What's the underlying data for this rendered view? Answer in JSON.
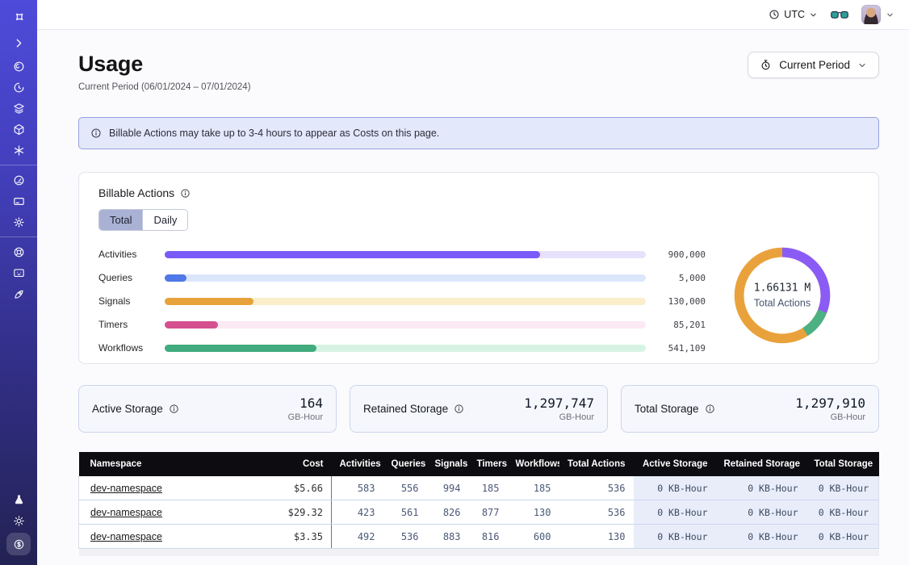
{
  "topbar": {
    "timezone": "UTC"
  },
  "sidebar": {
    "icons": [
      "pinwheel-logo",
      "chevron-right",
      "spiral",
      "history-clock",
      "layers",
      "cube",
      "asterisk",
      "gauge",
      "card",
      "gear",
      "lifebuoy",
      "monitor",
      "rocket",
      "flask",
      "sun",
      "dollar-coin"
    ]
  },
  "header": {
    "title": "Usage",
    "subtitle": "Current Period (06/01/2024 – 07/01/2024)",
    "period_button_label": "Current Period"
  },
  "banner": {
    "text": "Billable Actions may take up to 3-4 hours to appear as Costs on this page."
  },
  "billable_actions": {
    "title": "Billable Actions",
    "tabs": [
      "Total",
      "Daily"
    ],
    "active_tab": "Total"
  },
  "chart_data": [
    {
      "type": "bar",
      "orientation": "horizontal",
      "title": "Billable Actions — Total",
      "categories": [
        "Activities",
        "Queries",
        "Signals",
        "Timers",
        "Workflows"
      ],
      "values": [
        900000,
        5000,
        130000,
        85201,
        541109
      ],
      "value_labels": [
        "900,000",
        "5,000",
        "130,000",
        "85,201",
        "541,109"
      ],
      "bar_colors": [
        "#7a5af8",
        "#4f78e8",
        "#e8a23c",
        "#d4508f",
        "#42ab7e"
      ],
      "track_colors": [
        "#e7e1fc",
        "#dce6fb",
        "#faeecb",
        "#fbe9f4",
        "#d7f3e4"
      ],
      "bar_fractions": [
        0.78,
        0.045,
        0.185,
        0.11,
        0.315
      ],
      "grid": false,
      "legend": false
    },
    {
      "type": "donut",
      "title": "Total Actions",
      "center_value": "1.66131 M",
      "center_label": "Total Actions",
      "segments": [
        {
          "name": "purple",
          "color": "#8a5cf5",
          "pct": 31
        },
        {
          "name": "green",
          "color": "#4cb083",
          "pct": 10
        },
        {
          "name": "orange",
          "color": "#e9a23b",
          "pct": 59
        }
      ]
    }
  ],
  "storage_cards": [
    {
      "label": "Active Storage",
      "value": "164",
      "unit": "GB-Hour"
    },
    {
      "label": "Retained Storage",
      "value": "1,297,747",
      "unit": "GB-Hour"
    },
    {
      "label": "Total Storage",
      "value": "1,297,910",
      "unit": "GB-Hour"
    }
  ],
  "table": {
    "columns": [
      "Namespace",
      "Cost",
      "Activities",
      "Queries",
      "Signals",
      "Timers",
      "Workflows",
      "Total Actions",
      "Active Storage",
      "Retained Storage",
      "Total Storage"
    ],
    "rows": [
      {
        "namespace": "dev-namespace",
        "cost": "$5.66",
        "activities": "583",
        "queries": "556",
        "signals": "994",
        "timers": "185",
        "workflows": "185",
        "total_actions": "536",
        "active_storage": "0 KB-Hour",
        "retained_storage": "0 KB-Hour",
        "total_storage": "0 KB-Hour"
      },
      {
        "namespace": "dev-namespace",
        "cost": "$29.32",
        "activities": "423",
        "queries": "561",
        "signals": "826",
        "timers": "877",
        "workflows": "130",
        "total_actions": "536",
        "active_storage": "0 KB-Hour",
        "retained_storage": "0 KB-Hour",
        "total_storage": "0 KB-Hour"
      },
      {
        "namespace": "dev-namespace",
        "cost": "$3.35",
        "activities": "492",
        "queries": "536",
        "signals": "883",
        "timers": "816",
        "workflows": "600",
        "total_actions": "130",
        "active_storage": "0 KB-Hour",
        "retained_storage": "0 KB-Hour",
        "total_storage": "0 KB-Hour"
      }
    ]
  }
}
